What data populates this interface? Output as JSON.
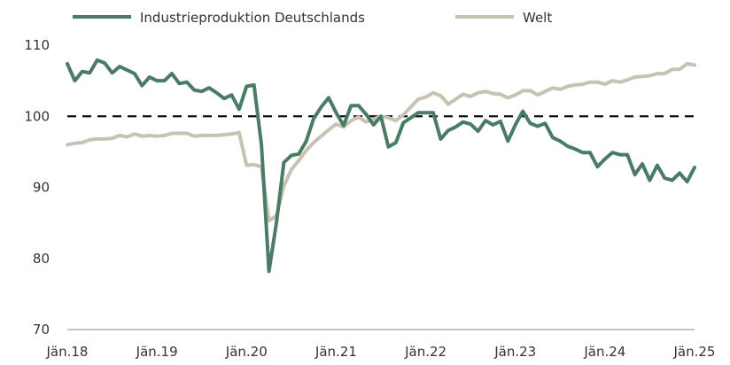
{
  "chart_data": {
    "type": "line",
    "title": "",
    "xlabel": "",
    "ylabel": "",
    "ylim": [
      70,
      110
    ],
    "yticks": [
      70,
      80,
      90,
      100,
      110
    ],
    "xlim": [
      0,
      84
    ],
    "xticks": [
      {
        "label": "Jän.18",
        "x": 0
      },
      {
        "label": "Jän.19",
        "x": 12
      },
      {
        "label": "Jän.20",
        "x": 24
      },
      {
        "label": "Jän.21",
        "x": 36
      },
      {
        "label": "Jän.22",
        "x": 48
      },
      {
        "label": "Jän.23",
        "x": 60
      },
      {
        "label": "Jän.24",
        "x": 72
      },
      {
        "label": "Jän.25",
        "x": 84
      }
    ],
    "reference_line": {
      "y": 100,
      "style": "dashed",
      "color": "#111111"
    },
    "legend_position": "top",
    "series": [
      {
        "name": "Industrieproduktion Deutschlands",
        "color": "#4a7c65",
        "values": [
          107.4,
          105,
          106.3,
          106.1,
          107.9,
          107.5,
          106.1,
          107,
          106.5,
          106,
          104.3,
          105.5,
          105,
          105,
          106,
          104.6,
          104.8,
          103.7,
          103.5,
          104,
          103.3,
          102.5,
          103,
          101,
          104.2,
          104.4,
          96,
          78.2,
          85,
          93.5,
          94.5,
          94.7,
          96.5,
          99.7,
          101.3,
          102.6,
          100.5,
          98.7,
          101.5,
          101.5,
          100.3,
          98.8,
          100,
          95.7,
          96.3,
          99.1,
          99.8,
          100.5,
          100.5,
          100.5,
          96.8,
          98,
          98.5,
          99.2,
          98.9,
          97.9,
          99.4,
          98.8,
          99.3,
          96.5,
          98.8,
          100.7,
          99,
          98.6,
          99,
          97,
          96.5,
          95.8,
          95.4,
          94.9,
          94.9,
          92.9,
          94,
          94.9,
          94.6,
          94.6,
          91.8,
          93.3,
          91,
          93.1,
          91.3,
          91,
          92,
          90.8,
          92.8
        ]
      },
      {
        "name": "Welt",
        "color": "#c8c2b4",
        "values": [
          96,
          96.2,
          96.3,
          96.7,
          96.8,
          96.8,
          96.9,
          97.3,
          97.1,
          97.5,
          97.2,
          97.3,
          97.2,
          97.3,
          97.6,
          97.6,
          97.6,
          97.2,
          97.3,
          97.3,
          97.3,
          97.4,
          97.5,
          97.7,
          93.1,
          93.2,
          92.9,
          85.3,
          86,
          90.2,
          92.5,
          93.8,
          95.2,
          96.3,
          97.2,
          98.1,
          98.9,
          98.5,
          99.4,
          99.9,
          99.2,
          99.6,
          100,
          99.8,
          99.4,
          100.2,
          101.3,
          102.4,
          102.7,
          103.3,
          102.9,
          101.7,
          102.4,
          103.1,
          102.8,
          103.3,
          103.5,
          103.2,
          103.1,
          102.6,
          103,
          103.6,
          103.6,
          103,
          103.5,
          104,
          103.8,
          104.2,
          104.4,
          104.5,
          104.8,
          104.8,
          104.5,
          105,
          104.8,
          105.1,
          105.5,
          105.6,
          105.7,
          106,
          106,
          106.6,
          106.6,
          107.4,
          107.2
        ]
      }
    ]
  }
}
